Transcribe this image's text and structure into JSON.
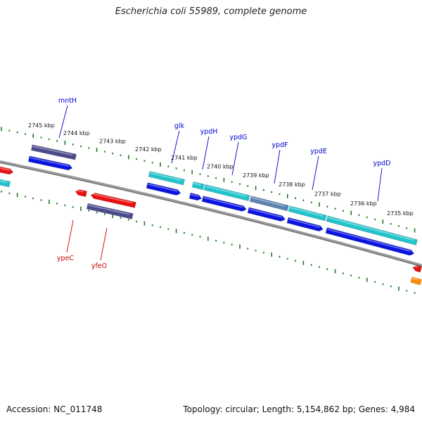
{
  "title": "Escherichia coli 55989, complete genome",
  "footer": {
    "accession": "Accession: NC_011748",
    "summary": "Topology: circular; Length: 5,154,862 bp; Genes: 4,984"
  },
  "kbp_labels": [
    "2745 kbp",
    "2744 kbp",
    "2743 kbp",
    "2742 kbp",
    "2741 kbp",
    "2740 kbp",
    "2739 kbp",
    "2738 kbp",
    "2737 kbp",
    "2736 kbp",
    "2735 kbp"
  ],
  "genes_top": [
    "mntH",
    "glk",
    "ypdH",
    "ypdG",
    "ypdF",
    "ypdE",
    "ypdD"
  ],
  "genes_bottom": [
    "ypeC",
    "yfeO"
  ],
  "colors": {
    "top_gene_label": "#0000cc",
    "bottom_gene_label": "#cc0000",
    "backbone": "#777777",
    "tick": "#1f7a1f",
    "cds_forward": "#0a14e0",
    "cds_reverse": "#e81010",
    "gene_purple": "#4a4a8c",
    "gene_cyan": "#22c4cc",
    "gene_steel": "#5a84b0",
    "gene_orange": "#ff8c00"
  }
}
